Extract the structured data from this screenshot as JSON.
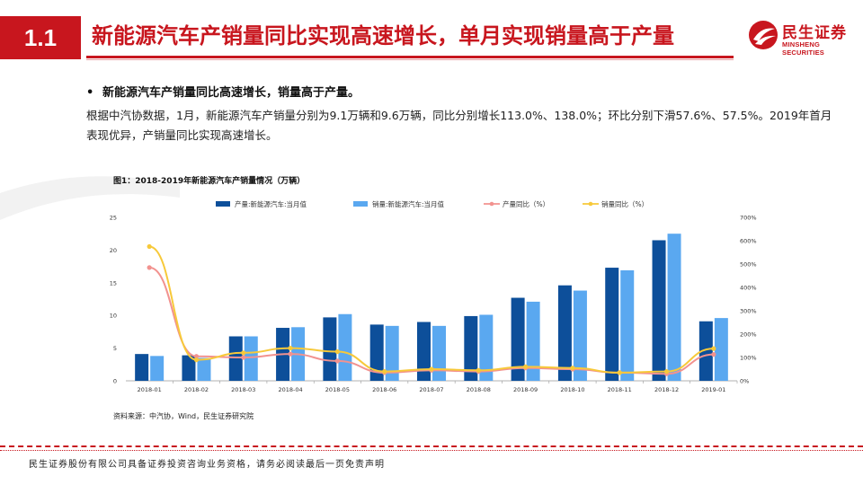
{
  "header": {
    "section_number": "1.1",
    "title": "新能源汽车产销量同比实现高速增长，单月实现销量高于产量"
  },
  "logo": {
    "name_cn": "民生证券",
    "name_en": "MINSHENG SECURITIES"
  },
  "body": {
    "bullet": "•",
    "bullet_heading": "新能源汽车产销量同比高速增长，销量高于产量。",
    "paragraph": "根据中汽协数据，1月，新能源汽车产销量分别为9.1万辆和9.6万辆，同比分别增长113.0%、138.0%；环比分别下滑57.6%、57.5%。2019年首月表现优异，产销量同比实现高速增长。"
  },
  "figure": {
    "title": "图1：2018-2019年新能源汽车产销量情况（万辆）",
    "source": "资料来源：中汽协，Wind，民生证券研究院"
  },
  "footer": {
    "disclaimer": "民生证券股份有限公司具备证券投资咨询业务资格，请务必阅读最后一页免责声明"
  },
  "colors": {
    "brand_red": "#c8161e",
    "production_bar": "#0d4f9a",
    "sales_bar": "#5aa8f0",
    "production_yoy_line": "#f2928f",
    "sales_yoy_line": "#f7c93a"
  },
  "chart_data": {
    "type": "bar",
    "title": "图1：2018-2019年新能源汽车产销量情况（万辆）",
    "categories": [
      "2018-01",
      "2018-02",
      "2018-03",
      "2018-04",
      "2018-05",
      "2018-06",
      "2018-07",
      "2018-08",
      "2018-09",
      "2018-10",
      "2018-11",
      "2018-12",
      "2019-01"
    ],
    "series": [
      {
        "name": "产量:新能源汽车:当月值",
        "type": "bar",
        "axis": "left",
        "values": [
          4.1,
          3.9,
          6.8,
          8.1,
          9.7,
          8.6,
          9.0,
          9.9,
          12.7,
          14.6,
          17.3,
          21.5,
          9.1
        ]
      },
      {
        "name": "销量:新能源汽车:当月值",
        "type": "bar",
        "axis": "left",
        "values": [
          3.8,
          3.5,
          6.8,
          8.2,
          10.2,
          8.4,
          8.4,
          10.1,
          12.1,
          13.8,
          16.9,
          22.5,
          9.6
        ]
      },
      {
        "name": "产量同比（%）",
        "type": "line",
        "axis": "right",
        "values": [
          485,
          105,
          100,
          115,
          85,
          35,
          45,
          40,
          55,
          50,
          35,
          30,
          113
        ]
      },
      {
        "name": "销量同比（%）",
        "type": "line",
        "axis": "right",
        "values": [
          575,
          90,
          120,
          140,
          125,
          40,
          50,
          45,
          60,
          55,
          35,
          40,
          138
        ]
      }
    ],
    "ylim_left": [
      0,
      25
    ],
    "yticks_left": [
      "0",
      "5",
      "10",
      "15",
      "20",
      "25"
    ],
    "ylim_right": [
      0,
      700
    ],
    "yticks_right": [
      "0%",
      "100%",
      "200%",
      "300%",
      "400%",
      "500%",
      "600%",
      "700%"
    ],
    "legend_position": "top"
  }
}
